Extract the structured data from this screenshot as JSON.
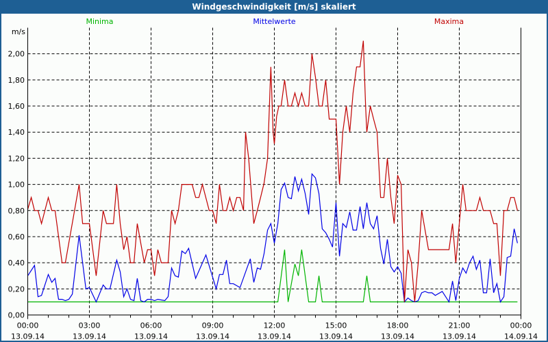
{
  "window": {
    "title": "Windgeschwindigkeit [m/s] skaliert"
  },
  "chart_data": {
    "type": "line",
    "title": "Windgeschwindigkeit [m/s] skaliert",
    "ylabel": "m/s",
    "xlabel": "",
    "ylim": [
      0,
      2.2
    ],
    "xlim_hours": [
      0,
      24
    ],
    "grid": true,
    "legend_placement": "top",
    "y_ticks": [
      {
        "v": 0,
        "label": "0,00"
      },
      {
        "v": 0.2,
        "label": "0,20"
      },
      {
        "v": 0.4,
        "label": "0,40"
      },
      {
        "v": 0.6,
        "label": "0,60"
      },
      {
        "v": 0.8,
        "label": "0,80"
      },
      {
        "v": 1.0,
        "label": "1,00"
      },
      {
        "v": 1.2,
        "label": "1,20"
      },
      {
        "v": 1.4,
        "label": "1,40"
      },
      {
        "v": 1.6,
        "label": "1,60"
      },
      {
        "v": 1.8,
        "label": "1,80"
      },
      {
        "v": 2.0,
        "label": "2,00"
      }
    ],
    "x_ticks": [
      {
        "h": 0,
        "time": "00:00",
        "date": "13.09.14"
      },
      {
        "h": 3,
        "time": "03:00",
        "date": "13.09.14"
      },
      {
        "h": 6,
        "time": "06:00",
        "date": "13.09.14"
      },
      {
        "h": 9,
        "time": "09:00",
        "date": "13.09.14"
      },
      {
        "h": 12,
        "time": "12:00",
        "date": "13.09.14"
      },
      {
        "h": 15,
        "time": "15:00",
        "date": "13.09.14"
      },
      {
        "h": 18,
        "time": "18:00",
        "date": "13.09.14"
      },
      {
        "h": 21,
        "time": "21:00",
        "date": "13.09.14"
      },
      {
        "h": 24,
        "time": "00:00",
        "date": "14.09.14"
      }
    ],
    "series": [
      {
        "name": "Minima",
        "color": "#00b400",
        "legend_hour": 3.5,
        "points": [
          [
            0,
            0.1
          ],
          [
            12.17,
            0.1
          ],
          [
            12.5,
            0.5
          ],
          [
            12.67,
            0.1
          ],
          [
            13,
            0.39
          ],
          [
            13.17,
            0.3
          ],
          [
            13.33,
            0.5
          ],
          [
            13.67,
            0.1
          ],
          [
            14,
            0.1
          ],
          [
            14.17,
            0.3
          ],
          [
            14.33,
            0.1
          ],
          [
            16.33,
            0.1
          ],
          [
            16.5,
            0.3
          ],
          [
            16.67,
            0.1
          ],
          [
            23.83,
            0.1
          ]
        ]
      },
      {
        "name": "Mittelwerte",
        "color": "#0000e6",
        "legend_hour": 12,
        "points": [
          [
            0,
            0.3
          ],
          [
            0.33,
            0.38
          ],
          [
            0.5,
            0.14
          ],
          [
            0.67,
            0.15
          ],
          [
            1,
            0.31
          ],
          [
            1.17,
            0.25
          ],
          [
            1.33,
            0.28
          ],
          [
            1.5,
            0.12
          ],
          [
            1.67,
            0.12
          ],
          [
            1.83,
            0.11
          ],
          [
            2,
            0.12
          ],
          [
            2.17,
            0.16
          ],
          [
            2.5,
            0.61
          ],
          [
            2.67,
            0.4
          ],
          [
            2.83,
            0.2
          ],
          [
            3,
            0.21
          ],
          [
            3.33,
            0.1
          ],
          [
            3.67,
            0.23
          ],
          [
            3.83,
            0.2
          ],
          [
            4,
            0.2
          ],
          [
            4.33,
            0.42
          ],
          [
            4.5,
            0.33
          ],
          [
            4.67,
            0.14
          ],
          [
            4.83,
            0.2
          ],
          [
            5,
            0.12
          ],
          [
            5.17,
            0.11
          ],
          [
            5.33,
            0.28
          ],
          [
            5.5,
            0.11
          ],
          [
            5.67,
            0.1
          ],
          [
            5.83,
            0.12
          ],
          [
            6,
            0.12
          ],
          [
            6.17,
            0.11
          ],
          [
            6.33,
            0.12
          ],
          [
            6.67,
            0.11
          ],
          [
            6.83,
            0.14
          ],
          [
            7,
            0.36
          ],
          [
            7.17,
            0.3
          ],
          [
            7.33,
            0.29
          ],
          [
            7.5,
            0.49
          ],
          [
            7.67,
            0.47
          ],
          [
            7.83,
            0.51
          ],
          [
            8.17,
            0.28
          ],
          [
            8.67,
            0.46
          ],
          [
            9.17,
            0.2
          ],
          [
            9.33,
            0.31
          ],
          [
            9.5,
            0.31
          ],
          [
            9.67,
            0.42
          ],
          [
            9.83,
            0.24
          ],
          [
            10,
            0.24
          ],
          [
            10.33,
            0.21
          ],
          [
            10.83,
            0.43
          ],
          [
            11,
            0.25
          ],
          [
            11.17,
            0.36
          ],
          [
            11.33,
            0.35
          ],
          [
            11.5,
            0.47
          ],
          [
            11.67,
            0.65
          ],
          [
            11.83,
            0.7
          ],
          [
            12,
            0.55
          ],
          [
            12.17,
            0.7
          ],
          [
            12.33,
            0.96
          ],
          [
            12.5,
            1.01
          ],
          [
            12.67,
            0.9
          ],
          [
            12.83,
            0.89
          ],
          [
            13,
            1.06
          ],
          [
            13.17,
            0.95
          ],
          [
            13.33,
            1.04
          ],
          [
            13.5,
            0.93
          ],
          [
            13.67,
            0.77
          ],
          [
            13.83,
            1.08
          ],
          [
            14,
            1.05
          ],
          [
            14.17,
            0.93
          ],
          [
            14.33,
            0.66
          ],
          [
            14.5,
            0.63
          ],
          [
            14.67,
            0.58
          ],
          [
            14.83,
            0.52
          ],
          [
            15,
            0.86
          ],
          [
            15.17,
            0.45
          ],
          [
            15.33,
            0.7
          ],
          [
            15.5,
            0.67
          ],
          [
            15.67,
            0.79
          ],
          [
            15.83,
            0.65
          ],
          [
            16,
            0.65
          ],
          [
            16.17,
            0.83
          ],
          [
            16.33,
            0.66
          ],
          [
            16.5,
            0.86
          ],
          [
            16.67,
            0.7
          ],
          [
            16.83,
            0.66
          ],
          [
            17,
            0.76
          ],
          [
            17.17,
            0.51
          ],
          [
            17.33,
            0.39
          ],
          [
            17.5,
            0.58
          ],
          [
            17.67,
            0.37
          ],
          [
            17.83,
            0.33
          ],
          [
            18,
            0.37
          ],
          [
            18.17,
            0.32
          ],
          [
            18.33,
            0.1
          ],
          [
            18.5,
            0.13
          ],
          [
            18.67,
            0.11
          ],
          [
            18.83,
            0.1
          ],
          [
            19,
            0.11
          ],
          [
            19.17,
            0.17
          ],
          [
            19.33,
            0.18
          ],
          [
            19.5,
            0.17
          ],
          [
            19.67,
            0.17
          ],
          [
            19.83,
            0.15
          ],
          [
            20.17,
            0.18
          ],
          [
            20.5,
            0.1
          ],
          [
            20.67,
            0.26
          ],
          [
            20.83,
            0.11
          ],
          [
            21,
            0.28
          ],
          [
            21.17,
            0.36
          ],
          [
            21.33,
            0.32
          ],
          [
            21.5,
            0.4
          ],
          [
            21.67,
            0.45
          ],
          [
            21.83,
            0.35
          ],
          [
            22,
            0.42
          ],
          [
            22.17,
            0.17
          ],
          [
            22.33,
            0.17
          ],
          [
            22.5,
            0.43
          ],
          [
            22.67,
            0.17
          ],
          [
            22.83,
            0.24
          ],
          [
            23,
            0.1
          ],
          [
            23.17,
            0.14
          ],
          [
            23.33,
            0.44
          ],
          [
            23.5,
            0.45
          ],
          [
            23.67,
            0.66
          ],
          [
            23.83,
            0.55
          ]
        ]
      },
      {
        "name": "Maxima",
        "color": "#c00000",
        "legend_hour": 20.5,
        "points": [
          [
            0,
            0.81
          ],
          [
            0.17,
            0.9
          ],
          [
            0.33,
            0.8
          ],
          [
            0.5,
            0.8
          ],
          [
            0.67,
            0.7
          ],
          [
            1,
            0.9
          ],
          [
            1.17,
            0.8
          ],
          [
            1.33,
            0.8
          ],
          [
            1.67,
            0.4
          ],
          [
            1.83,
            0.4
          ],
          [
            2.5,
            1.0
          ],
          [
            2.67,
            0.7
          ],
          [
            3,
            0.7
          ],
          [
            3.33,
            0.3
          ],
          [
            3.67,
            0.8
          ],
          [
            3.83,
            0.7
          ],
          [
            4.17,
            0.7
          ],
          [
            4.33,
            1.0
          ],
          [
            4.5,
            0.7
          ],
          [
            4.67,
            0.5
          ],
          [
            4.83,
            0.6
          ],
          [
            5,
            0.4
          ],
          [
            5.17,
            0.4
          ],
          [
            5.33,
            0.7
          ],
          [
            5.5,
            0.55
          ],
          [
            5.67,
            0.4
          ],
          [
            5.83,
            0.5
          ],
          [
            6,
            0.5
          ],
          [
            6.17,
            0.3
          ],
          [
            6.33,
            0.5
          ],
          [
            6.5,
            0.4
          ],
          [
            6.83,
            0.4
          ],
          [
            7,
            0.8
          ],
          [
            7.17,
            0.7
          ],
          [
            7.33,
            0.8
          ],
          [
            7.5,
            1.0
          ],
          [
            8,
            1.0
          ],
          [
            8.17,
            0.9
          ],
          [
            8.33,
            0.9
          ],
          [
            8.5,
            1.0
          ],
          [
            8.83,
            0.8
          ],
          [
            9,
            0.8
          ],
          [
            9.17,
            0.7
          ],
          [
            9.33,
            1.0
          ],
          [
            9.5,
            0.8
          ],
          [
            9.67,
            0.8
          ],
          [
            9.83,
            0.9
          ],
          [
            10,
            0.8
          ],
          [
            10.17,
            0.9
          ],
          [
            10.33,
            0.9
          ],
          [
            10.5,
            0.8
          ],
          [
            10.6,
            1.4
          ],
          [
            10.75,
            1.2
          ],
          [
            11,
            0.7
          ],
          [
            11.17,
            0.8
          ],
          [
            11.33,
            0.9
          ],
          [
            11.5,
            1.01
          ],
          [
            11.67,
            1.2
          ],
          [
            11.78,
            1.69
          ],
          [
            11.83,
            1.9
          ],
          [
            11.94,
            1.4
          ],
          [
            12,
            1.31
          ],
          [
            12.11,
            1.52
          ],
          [
            12.22,
            1.6
          ],
          [
            12.33,
            1.6
          ],
          [
            12.5,
            1.8
          ],
          [
            12.67,
            1.6
          ],
          [
            12.83,
            1.6
          ],
          [
            13,
            1.7
          ],
          [
            13.17,
            1.6
          ],
          [
            13.33,
            1.7
          ],
          [
            13.5,
            1.6
          ],
          [
            13.67,
            1.6
          ],
          [
            13.83,
            2.0
          ],
          [
            14,
            1.82
          ],
          [
            14.17,
            1.6
          ],
          [
            14.33,
            1.6
          ],
          [
            14.5,
            1.8
          ],
          [
            14.67,
            1.5
          ],
          [
            15,
            1.5
          ],
          [
            15.17,
            1.0
          ],
          [
            15.33,
            1.4
          ],
          [
            15.5,
            1.6
          ],
          [
            15.67,
            1.4
          ],
          [
            15.83,
            1.7
          ],
          [
            16,
            1.9
          ],
          [
            16.17,
            1.9
          ],
          [
            16.33,
            2.1
          ],
          [
            16.44,
            1.6
          ],
          [
            16.5,
            1.4
          ],
          [
            16.67,
            1.6
          ],
          [
            16.83,
            1.5
          ],
          [
            17,
            1.4
          ],
          [
            17.17,
            0.9
          ],
          [
            17.33,
            0.9
          ],
          [
            17.5,
            1.2
          ],
          [
            17.67,
            0.9
          ],
          [
            17.83,
            0.7
          ],
          [
            18,
            1.07
          ],
          [
            18.17,
            1.0
          ],
          [
            18.33,
            0.1
          ],
          [
            18.5,
            0.5
          ],
          [
            18.67,
            0.4
          ],
          [
            18.83,
            0.1
          ],
          [
            19,
            0.4
          ],
          [
            19.17,
            0.8
          ],
          [
            19.5,
            0.5
          ],
          [
            20.5,
            0.5
          ],
          [
            20.67,
            0.7
          ],
          [
            20.83,
            0.4
          ],
          [
            21,
            0.7
          ],
          [
            21.17,
            1.0
          ],
          [
            21.33,
            0.8
          ],
          [
            21.83,
            0.8
          ],
          [
            22,
            0.9
          ],
          [
            22.17,
            0.8
          ],
          [
            22.5,
            0.8
          ],
          [
            22.67,
            0.7
          ],
          [
            22.83,
            0.7
          ],
          [
            23,
            0.3
          ],
          [
            23.17,
            0.8
          ],
          [
            23.33,
            0.8
          ],
          [
            23.5,
            0.9
          ],
          [
            23.67,
            0.9
          ],
          [
            23.83,
            0.8
          ]
        ]
      }
    ]
  }
}
